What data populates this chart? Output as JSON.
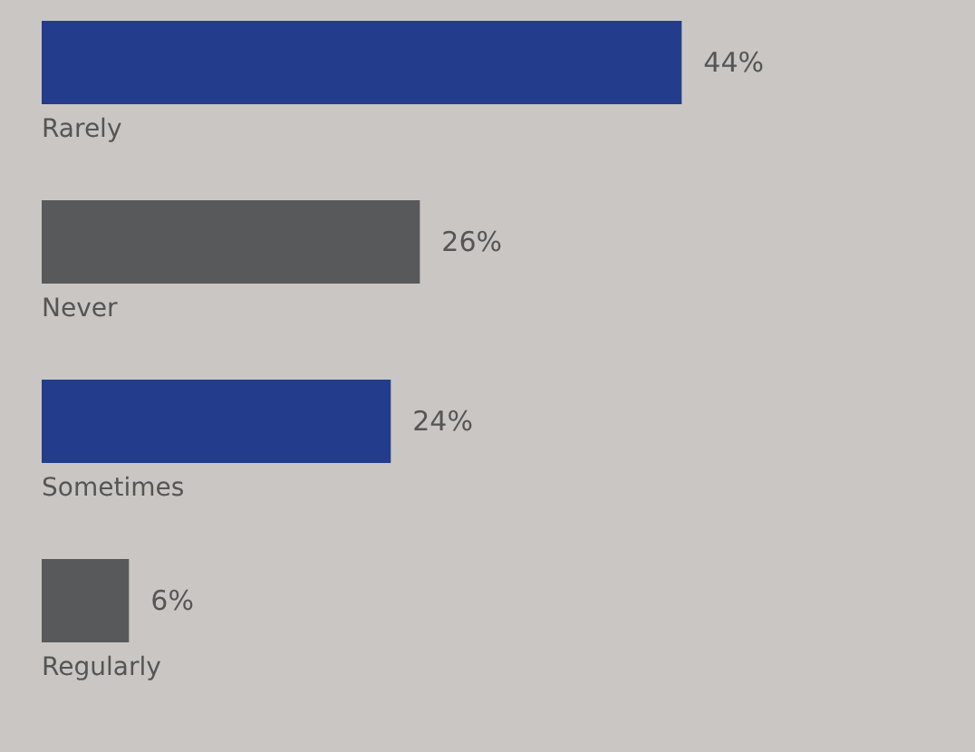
{
  "chart_data": {
    "type": "bar",
    "orientation": "horizontal",
    "categories": [
      "Rarely",
      "Never",
      "Sometimes",
      "Regularly"
    ],
    "values": [
      44,
      26,
      24,
      6
    ],
    "colors": [
      "#233d8c",
      "#58595b",
      "#233d8c",
      "#58595b"
    ],
    "value_labels": [
      "44%",
      "26%",
      "24%",
      "6%"
    ]
  }
}
